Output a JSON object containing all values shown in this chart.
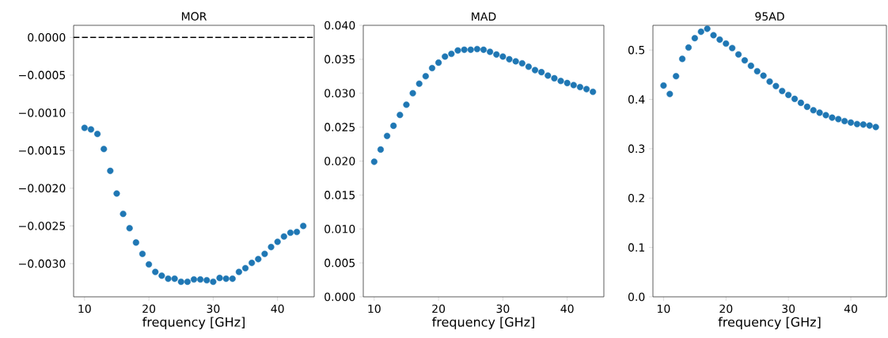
{
  "chart_data": [
    {
      "type": "scatter",
      "title": "MOR",
      "xlabel": "frequency [GHz]",
      "marker": "circle",
      "x": [
        10,
        11,
        12,
        13,
        14,
        15,
        16,
        17,
        18,
        19,
        20,
        21,
        22,
        23,
        24,
        25,
        26,
        27,
        28,
        29,
        30,
        31,
        32,
        33,
        34,
        35,
        36,
        37,
        38,
        39,
        40,
        41,
        42,
        43,
        44
      ],
      "series": [
        {
          "color": "#1f77b4",
          "values": [
            -0.0012,
            -0.00122,
            -0.00128,
            -0.00148,
            -0.00177,
            -0.00207,
            -0.00234,
            -0.00253,
            -0.00272,
            -0.00287,
            -0.00301,
            -0.00311,
            -0.00316,
            -0.0032,
            -0.0032,
            -0.00324,
            -0.00324,
            -0.00321,
            -0.00321,
            -0.00322,
            -0.00324,
            -0.00319,
            -0.0032,
            -0.0032,
            -0.00311,
            -0.00306,
            -0.00299,
            -0.00294,
            -0.00287,
            -0.00278,
            -0.00271,
            -0.00264,
            -0.00259,
            -0.00258,
            -0.0025
          ]
        }
      ],
      "xlim": [
        8.3,
        45.7
      ],
      "ylim": [
        -0.00344,
        0.00016
      ],
      "xticks": [
        10,
        20,
        30,
        40
      ],
      "yticks": [
        {
          "value": 0,
          "label": "0.0000"
        },
        {
          "value": -0.0005,
          "label": "−0.0005"
        },
        {
          "value": -0.001,
          "label": "−0.0010"
        },
        {
          "value": -0.0015,
          "label": "−0.0015"
        },
        {
          "value": -0.002,
          "label": "−0.0020"
        },
        {
          "value": -0.0025,
          "label": "−0.0025"
        },
        {
          "value": -0.003,
          "label": "−0.0030"
        }
      ],
      "ref_lines": [
        {
          "axis": "y",
          "value": 0,
          "color": "#000000",
          "line_style": "dashed"
        }
      ]
    },
    {
      "type": "scatter",
      "title": "MAD",
      "xlabel": "frequency [GHz]",
      "marker": "circle",
      "x": [
        10,
        11,
        12,
        13,
        14,
        15,
        16,
        17,
        18,
        19,
        20,
        21,
        22,
        23,
        24,
        25,
        26,
        27,
        28,
        29,
        30,
        31,
        32,
        33,
        34,
        35,
        36,
        37,
        38,
        39,
        40,
        41,
        42,
        43,
        44
      ],
      "series": [
        {
          "color": "#1f77b4",
          "values": [
            0.0199,
            0.0217,
            0.0237,
            0.0252,
            0.0268,
            0.0283,
            0.03,
            0.0314,
            0.0325,
            0.0337,
            0.0345,
            0.0354,
            0.0358,
            0.0363,
            0.0364,
            0.0364,
            0.0365,
            0.0364,
            0.0361,
            0.0357,
            0.0354,
            0.035,
            0.0347,
            0.0344,
            0.0339,
            0.0334,
            0.0331,
            0.0326,
            0.0322,
            0.0318,
            0.0315,
            0.0312,
            0.0309,
            0.0306,
            0.0302
          ]
        }
      ],
      "xlim": [
        8.3,
        45.7
      ],
      "ylim": [
        0,
        0.04
      ],
      "xticks": [
        10,
        20,
        30,
        40
      ],
      "yticks": [
        {
          "value": 0,
          "label": "0.000"
        },
        {
          "value": 0.005,
          "label": "0.005"
        },
        {
          "value": 0.01,
          "label": "0.010"
        },
        {
          "value": 0.015,
          "label": "0.015"
        },
        {
          "value": 0.02,
          "label": "0.020"
        },
        {
          "value": 0.025,
          "label": "0.025"
        },
        {
          "value": 0.03,
          "label": "0.030"
        },
        {
          "value": 0.035,
          "label": "0.035"
        },
        {
          "value": 0.04,
          "label": "0.040"
        }
      ]
    },
    {
      "type": "scatter",
      "title": "95AD",
      "xlabel": "frequency [GHz]",
      "marker": "circle",
      "x": [
        10,
        11,
        12,
        13,
        14,
        15,
        16,
        17,
        18,
        19,
        20,
        21,
        22,
        23,
        24,
        25,
        26,
        27,
        28,
        29,
        30,
        31,
        32,
        33,
        34,
        35,
        36,
        37,
        38,
        39,
        40,
        41,
        42,
        43,
        44
      ],
      "series": [
        {
          "color": "#1f77b4",
          "values": [
            0.428,
            0.411,
            0.447,
            0.482,
            0.505,
            0.524,
            0.537,
            0.543,
            0.53,
            0.521,
            0.513,
            0.504,
            0.491,
            0.479,
            0.468,
            0.457,
            0.448,
            0.436,
            0.427,
            0.417,
            0.409,
            0.401,
            0.393,
            0.385,
            0.378,
            0.373,
            0.368,
            0.363,
            0.36,
            0.356,
            0.353,
            0.35,
            0.349,
            0.347,
            0.344
          ]
        }
      ],
      "xlim": [
        8.3,
        45.7
      ],
      "ylim": [
        0,
        0.55
      ],
      "xticks": [
        10,
        20,
        30,
        40
      ],
      "yticks": [
        {
          "value": 0,
          "label": "0.0"
        },
        {
          "value": 0.1,
          "label": "0.1"
        },
        {
          "value": 0.2,
          "label": "0.2"
        },
        {
          "value": 0.3,
          "label": "0.3"
        },
        {
          "value": 0.4,
          "label": "0.4"
        },
        {
          "value": 0.5,
          "label": "0.5"
        }
      ]
    }
  ]
}
